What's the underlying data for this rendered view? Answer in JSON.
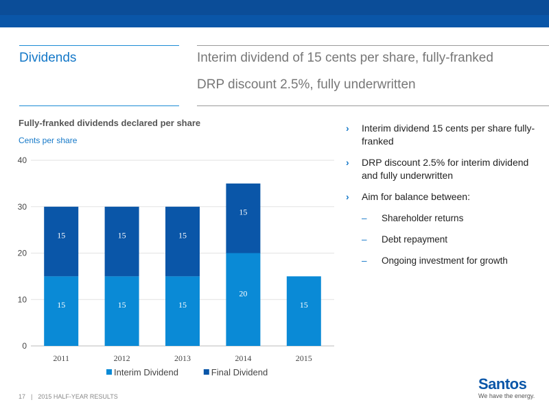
{
  "header": {
    "section": "Dividends",
    "subtitle_lines": [
      "Interim dividend of 15 cents per share, fully-franked",
      "DRP discount 2.5%, fully underwritten"
    ]
  },
  "chart_title": "Fully-franked dividends declared per share",
  "chart_unit": "Cents per share",
  "chart_data": {
    "type": "bar",
    "stacked": true,
    "categories": [
      "2011",
      "2012",
      "2013",
      "2014",
      "2015"
    ],
    "series": [
      {
        "name": "Interim Dividend",
        "values": [
          15,
          15,
          15,
          20,
          15
        ],
        "color": "#0a8ad6"
      },
      {
        "name": "Final Dividend",
        "values": [
          15,
          15,
          15,
          15,
          null
        ],
        "color": "#0a56a8"
      }
    ],
    "ylim": [
      0,
      40
    ],
    "yticks": [
      0,
      10,
      20,
      30,
      40
    ],
    "grid": true,
    "legend": "bottom"
  },
  "bullets": [
    {
      "level": 1,
      "text": "Interim dividend 15 cents per share fully-franked"
    },
    {
      "level": 1,
      "text": "DRP discount 2.5% for interim dividend and fully underwritten"
    },
    {
      "level": 1,
      "text": "Aim for balance between:"
    },
    {
      "level": 2,
      "text": "Shareholder returns"
    },
    {
      "level": 2,
      "text": "Debt repayment"
    },
    {
      "level": 2,
      "text": "Ongoing investment for growth"
    }
  ],
  "bullet_markers": {
    "level1": "›",
    "level2": "–"
  },
  "footer": {
    "page": "17",
    "separator": "|",
    "label": "2015 HALF-YEAR RESULTS"
  },
  "logo": {
    "name": "Santos",
    "tagline": "We have the energy."
  },
  "colors": {
    "brand_blue": "#0a56a8",
    "accent_blue": "#1478c8",
    "interim": "#0a8ad6",
    "final": "#0a56a8"
  }
}
